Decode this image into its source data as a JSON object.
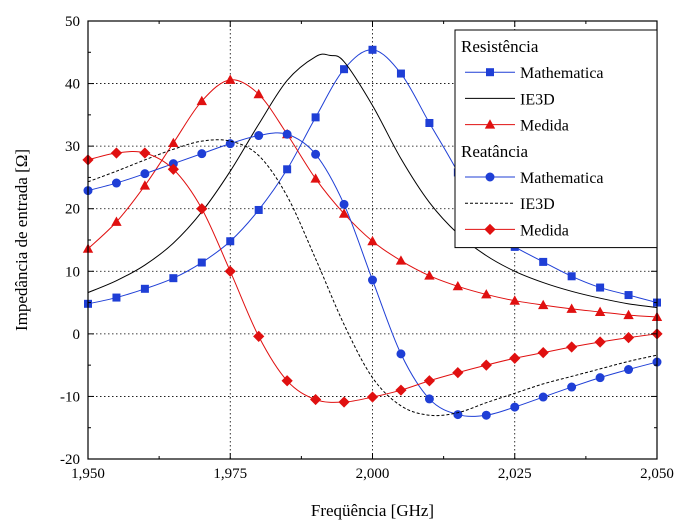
{
  "chart_data": {
    "type": "line",
    "xlabel": "Freqüência [GHz]",
    "ylabel": "Impedância de entrada [Ω]",
    "xlim": [
      1.95,
      2.05
    ],
    "ylim": [
      -20,
      50
    ],
    "xticks": [
      1.95,
      1.975,
      2.0,
      2.025,
      2.05
    ],
    "xtick_labels": [
      "1,950",
      "1,975",
      "2,000",
      "2,025",
      "2,050"
    ],
    "yticks": [
      -20,
      -10,
      0,
      10,
      20,
      30,
      40,
      50
    ],
    "ytick_labels": [
      "-20",
      "-10",
      "0",
      "10",
      "20",
      "30",
      "40",
      "50"
    ],
    "grid": "dotted",
    "legend_position": "top-right",
    "legend": [
      {
        "type": "header",
        "text": "Resistência"
      },
      {
        "type": "entry",
        "text": "Mathematica",
        "series": 0
      },
      {
        "type": "entry",
        "text": "IE3D",
        "series": 1
      },
      {
        "type": "entry",
        "text": "Medida",
        "series": 2
      },
      {
        "type": "header",
        "text": "Reatância"
      },
      {
        "type": "entry",
        "text": "Mathematica",
        "series": 3
      },
      {
        "type": "entry",
        "text": "IE3D",
        "series": 4
      },
      {
        "type": "entry",
        "text": "Medida",
        "series": 5
      }
    ],
    "series": [
      {
        "name": "Mathematica",
        "group": "Resistência",
        "color": "#1f3fd6",
        "marker": "square",
        "line": "solid",
        "x": [
          1.95,
          1.955,
          1.96,
          1.965,
          1.97,
          1.975,
          1.98,
          1.985,
          1.99,
          1.995,
          2.0,
          2.005,
          2.01,
          2.015,
          2.02,
          2.025,
          2.03,
          2.035,
          2.04,
          2.045,
          2.05
        ],
        "y": [
          4.8,
          5.8,
          7.2,
          8.9,
          11.4,
          14.8,
          19.8,
          26.3,
          34.6,
          42.3,
          45.4,
          41.6,
          33.7,
          25.8,
          16.6,
          13.9,
          11.5,
          9.2,
          7.4,
          6.2,
          5.0
        ]
      },
      {
        "name": "IE3D",
        "group": "Resistência",
        "color": "#000000",
        "marker": "none",
        "line": "solid",
        "x": [
          1.95,
          1.955,
          1.96,
          1.965,
          1.97,
          1.975,
          1.98,
          1.985,
          1.99,
          1.9925,
          1.995,
          2.0,
          2.005,
          2.01,
          2.015,
          2.02,
          2.025,
          2.03,
          2.035,
          2.04,
          2.045,
          2.05
        ],
        "y": [
          6.6,
          8.5,
          11.0,
          14.5,
          19.5,
          26.0,
          33.5,
          40.5,
          44.3,
          44.5,
          43.5,
          36.5,
          28.0,
          21.0,
          16.0,
          12.5,
          10.0,
          8.2,
          6.8,
          5.7,
          4.8,
          4.2
        ]
      },
      {
        "name": "Medida",
        "group": "Resistência",
        "color": "#e01010",
        "marker": "triangle",
        "line": "solid",
        "x": [
          1.95,
          1.955,
          1.96,
          1.965,
          1.97,
          1.975,
          1.98,
          1.985,
          1.99,
          1.995,
          2.0,
          2.005,
          2.01,
          2.015,
          2.02,
          2.025,
          2.03,
          2.035,
          2.04,
          2.045,
          2.05
        ],
        "y": [
          13.6,
          17.9,
          23.7,
          30.5,
          37.2,
          40.6,
          38.3,
          31.9,
          24.8,
          19.2,
          14.8,
          11.7,
          9.3,
          7.6,
          6.3,
          5.3,
          4.6,
          4.0,
          3.5,
          3.0,
          2.7
        ]
      },
      {
        "name": "Mathematica",
        "group": "Reatância",
        "color": "#1f3fd6",
        "marker": "circle",
        "line": "solid",
        "x": [
          1.95,
          1.955,
          1.96,
          1.965,
          1.97,
          1.975,
          1.98,
          1.985,
          1.99,
          1.995,
          2.0,
          2.005,
          2.01,
          2.015,
          2.02,
          2.025,
          2.03,
          2.035,
          2.04,
          2.045,
          2.05
        ],
        "y": [
          22.9,
          24.1,
          25.6,
          27.2,
          28.8,
          30.4,
          31.7,
          31.9,
          28.7,
          20.7,
          8.6,
          -3.2,
          -10.4,
          -12.9,
          -13.0,
          -11.7,
          -10.1,
          -8.5,
          -7.0,
          -5.7,
          -4.5
        ]
      },
      {
        "name": "IE3D",
        "group": "Reatância",
        "color": "#000000",
        "marker": "none",
        "line": "dashed",
        "x": [
          1.95,
          1.955,
          1.96,
          1.965,
          1.97,
          1.975,
          1.98,
          1.985,
          1.99,
          1.995,
          2.0,
          2.005,
          2.01,
          2.015,
          2.02,
          2.025,
          2.03,
          2.035,
          2.04,
          2.045,
          2.05
        ],
        "y": [
          24.3,
          26.0,
          27.8,
          29.5,
          30.8,
          30.8,
          28.5,
          22.0,
          12.0,
          1.5,
          -7.0,
          -11.5,
          -13.0,
          -12.6,
          -11.0,
          -9.5,
          -8.0,
          -6.8,
          -5.6,
          -4.4,
          -3.4
        ]
      },
      {
        "name": "Medida",
        "group": "Reatância",
        "color": "#e01010",
        "marker": "diamond",
        "line": "solid",
        "x": [
          1.95,
          1.955,
          1.96,
          1.965,
          1.97,
          1.975,
          1.98,
          1.985,
          1.99,
          1.995,
          2.0,
          2.005,
          2.01,
          2.015,
          2.02,
          2.025,
          2.03,
          2.035,
          2.04,
          2.045,
          2.05
        ],
        "y": [
          27.8,
          28.9,
          28.9,
          26.3,
          20.0,
          10.0,
          -0.4,
          -7.5,
          -10.5,
          -10.9,
          -10.1,
          -9.0,
          -7.5,
          -6.2,
          -5.0,
          -3.9,
          -3.0,
          -2.1,
          -1.3,
          -0.6,
          0.0
        ]
      }
    ]
  }
}
